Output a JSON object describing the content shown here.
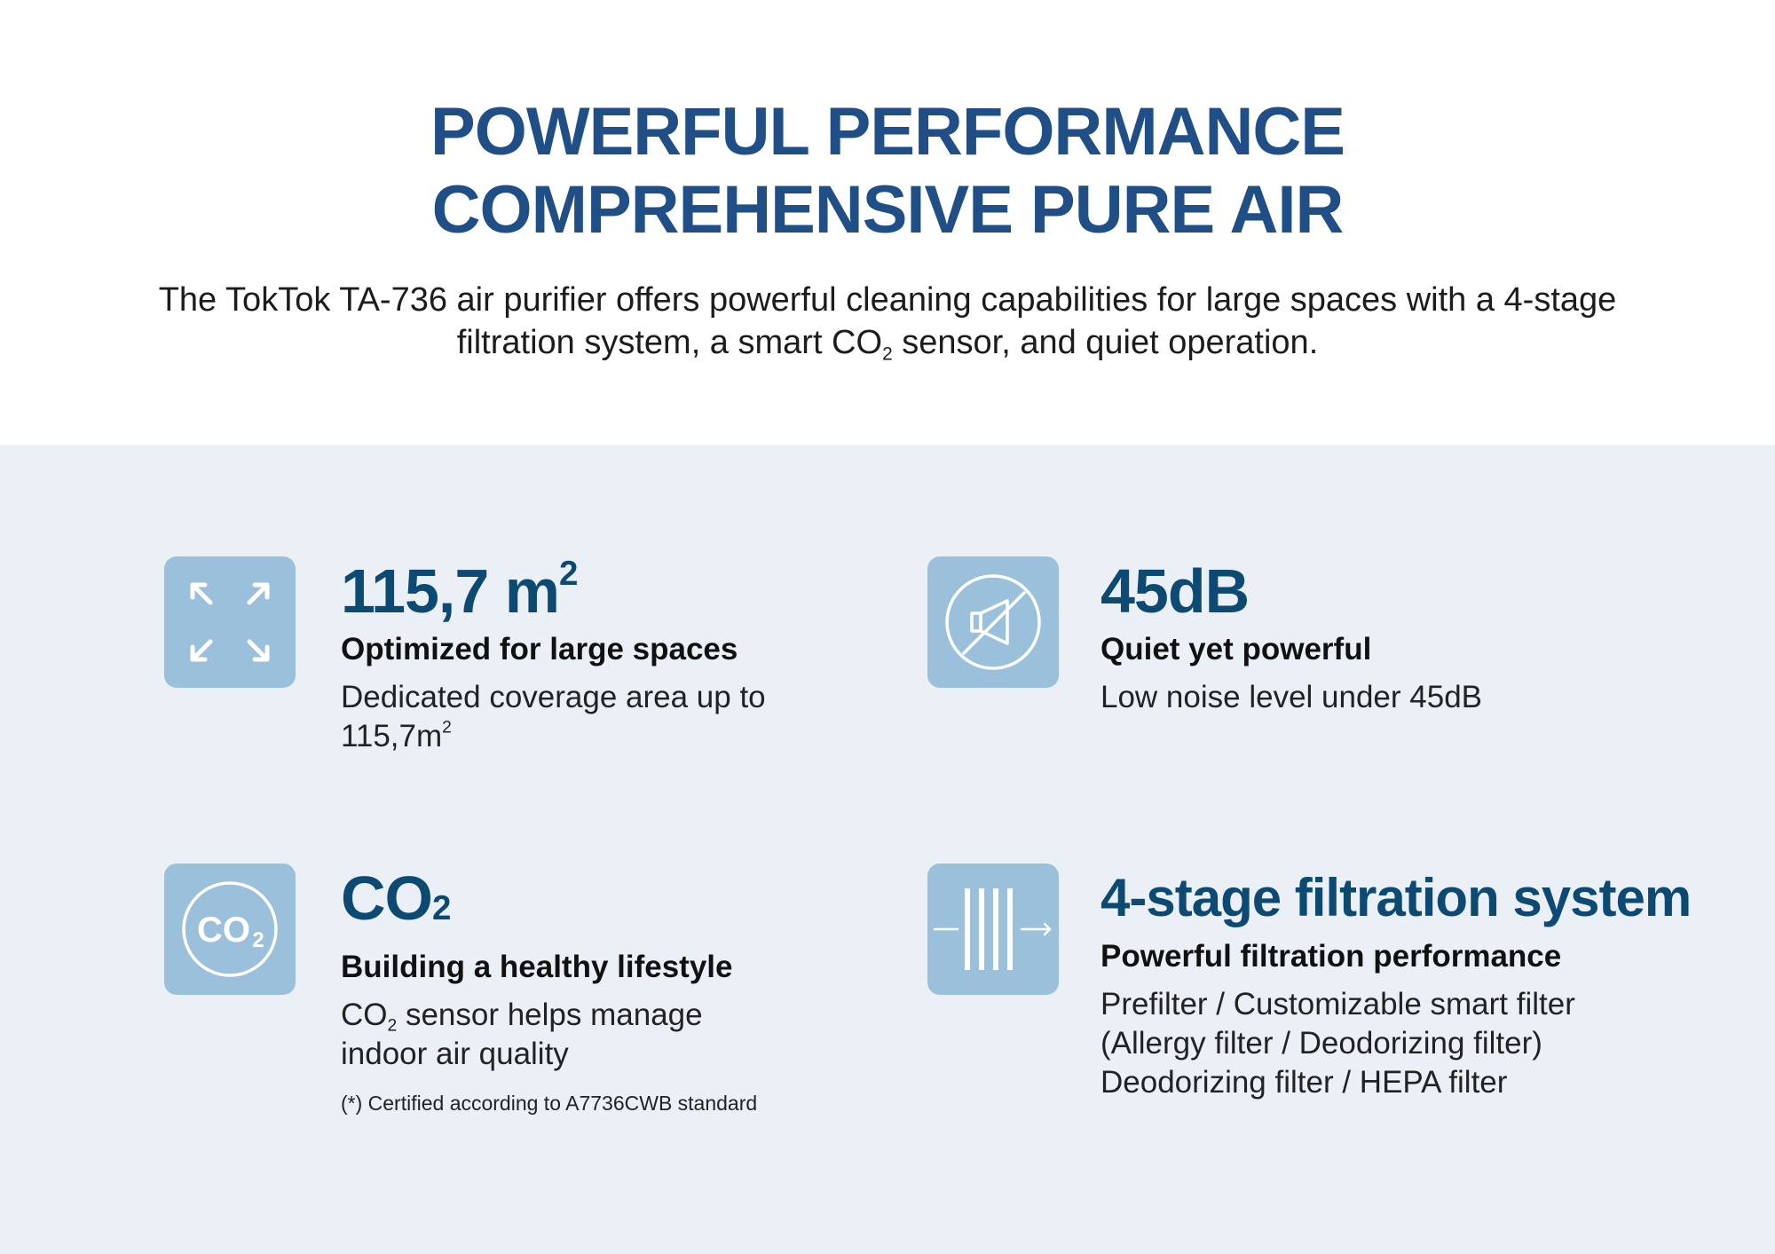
{
  "hero": {
    "title_line1": "POWERFUL PERFORMANCE",
    "title_line2": "COMPREHENSIVE PURE AIR",
    "subtitle_line1": "The TokTok TA-736 air purifier offers powerful cleaning capabilities for large spaces with a 4-stage",
    "subtitle_line2_a": "filtration system, a smart CO",
    "subtitle_line2_sub": "2",
    "subtitle_line2_b": " sensor, and quiet operation."
  },
  "features": {
    "coverage": {
      "icon": "expand-arrows-icon",
      "value": "115,7 m",
      "value_sup": "2",
      "heading": "Optimized for large spaces",
      "desc_line1": "Dedicated coverage area up to",
      "desc_line2": "115,7m",
      "desc_line2_sup": "2"
    },
    "noise": {
      "icon": "speaker-muted-icon",
      "value": "45dB",
      "heading": "Quiet yet powerful",
      "desc_line1": "Low noise level under 45dB"
    },
    "co2": {
      "icon": "co2-icon",
      "icon_label": "CO",
      "icon_label_sub": "2",
      "value": "CO",
      "value_sub": "2",
      "heading": "Building a healthy lifestyle",
      "desc_line1_a": "CO",
      "desc_line1_sub": "2",
      "desc_line1_b": " sensor helps manage",
      "desc_line2": "indoor air quality",
      "note": "(*) Certified according to A7736CWB standard"
    },
    "filtration": {
      "icon": "filter-layers-icon",
      "value": "4-stage filtration system",
      "heading": "Powerful filtration performance",
      "desc_line1": "Prefilter / Customizable smart filter",
      "desc_line2": "(Allergy filter / Deodorizing filter)",
      "desc_line3": "Deodorizing filter / HEPA filter"
    }
  },
  "colors": {
    "title": "#1f4f86",
    "value": "#0c4a73",
    "icon_bg": "#9ac0dc",
    "panel_bg": "#ebf0f7"
  }
}
